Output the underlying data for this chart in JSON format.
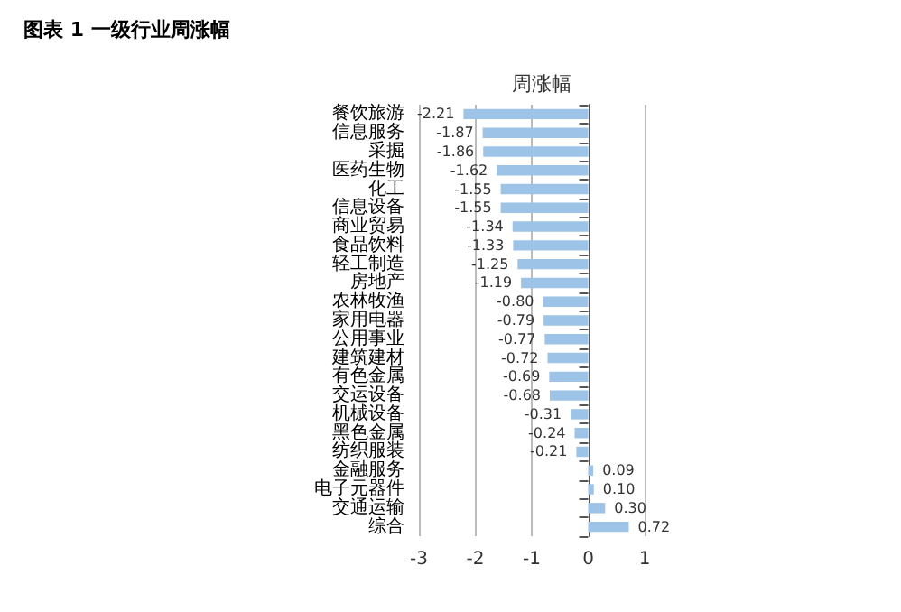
{
  "chart_data": {
    "type": "bar",
    "orientation": "horizontal",
    "title": "图表 1 一级行业周涨幅",
    "subtitle": "周涨幅",
    "categories": [
      "餐饮旅游",
      "信息服务",
      "采掘",
      "医药生物",
      "化工",
      "信息设备",
      "商业贸易",
      "食品饮料",
      "轻工制造",
      "房地产",
      "农林牧渔",
      "家用电器",
      "公用事业",
      "建筑建材",
      "有色金属",
      "交运设备",
      "机械设备",
      "黑色金属",
      "纺织服装",
      "金融服务",
      "电子元器件",
      "交通运输",
      "综合"
    ],
    "values": [
      -2.21,
      -1.87,
      -1.86,
      -1.62,
      -1.55,
      -1.55,
      -1.34,
      -1.33,
      -1.25,
      -1.19,
      -0.8,
      -0.79,
      -0.77,
      -0.72,
      -0.69,
      -0.68,
      -0.31,
      -0.24,
      -0.21,
      0.09,
      0.1,
      0.3,
      0.72
    ],
    "value_labels": [
      "-2.21",
      "-1.87",
      "-1.86",
      "-1.62",
      "-1.55",
      "-1.55",
      "-1.34",
      "-1.33",
      "-1.25",
      "-1.19",
      "-0.80",
      "-0.79",
      "-0.77",
      "-0.72",
      "-0.69",
      "-0.68",
      "-0.31",
      "-0.24",
      "-0.21",
      "0.09",
      "0.10",
      "0.30",
      "0.72"
    ],
    "color": "#9dc3e6",
    "xlim": [
      -3,
      1
    ],
    "xticks": [
      -3,
      -2,
      -1,
      0,
      1
    ],
    "grid": "x"
  }
}
